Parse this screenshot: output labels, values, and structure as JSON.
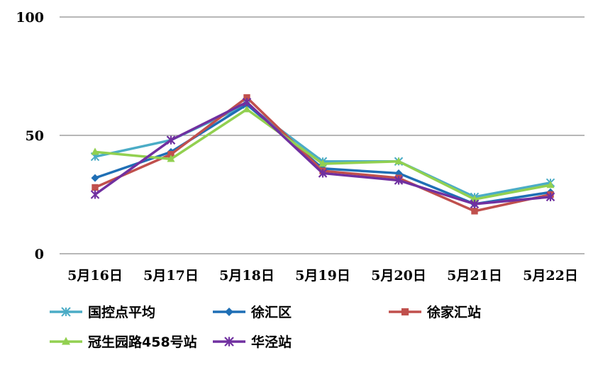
{
  "chart_data": {
    "type": "line",
    "categories": [
      "5月16日",
      "5月17日",
      "5月18日",
      "5月19日",
      "5月20日",
      "5月21日",
      "5月22日"
    ],
    "ylim": [
      0,
      100
    ],
    "yticks": [
      0,
      50,
      100
    ],
    "grid": true,
    "legend_position": "bottom",
    "series": [
      {
        "name": "国控点平均",
        "color": "#4BACC6",
        "marker": "asterisk",
        "values": [
          41,
          48,
          63,
          39,
          39,
          24,
          30
        ]
      },
      {
        "name": "徐汇区",
        "color": "#1F6FB5",
        "marker": "diamond",
        "values": [
          32,
          43,
          63,
          36,
          34,
          21,
          26
        ]
      },
      {
        "name": "徐家汇站",
        "color": "#C0504D",
        "marker": "square",
        "values": [
          28,
          42,
          66,
          35,
          32,
          18,
          25
        ]
      },
      {
        "name": "冠生园路458号站",
        "color": "#92D050",
        "marker": "triangle",
        "values": [
          43,
          40,
          61,
          38,
          39,
          23,
          29
        ]
      },
      {
        "name": "华泾站",
        "color": "#7030A0",
        "marker": "star",
        "values": [
          25,
          48,
          64,
          34,
          31,
          21,
          24
        ]
      }
    ]
  }
}
